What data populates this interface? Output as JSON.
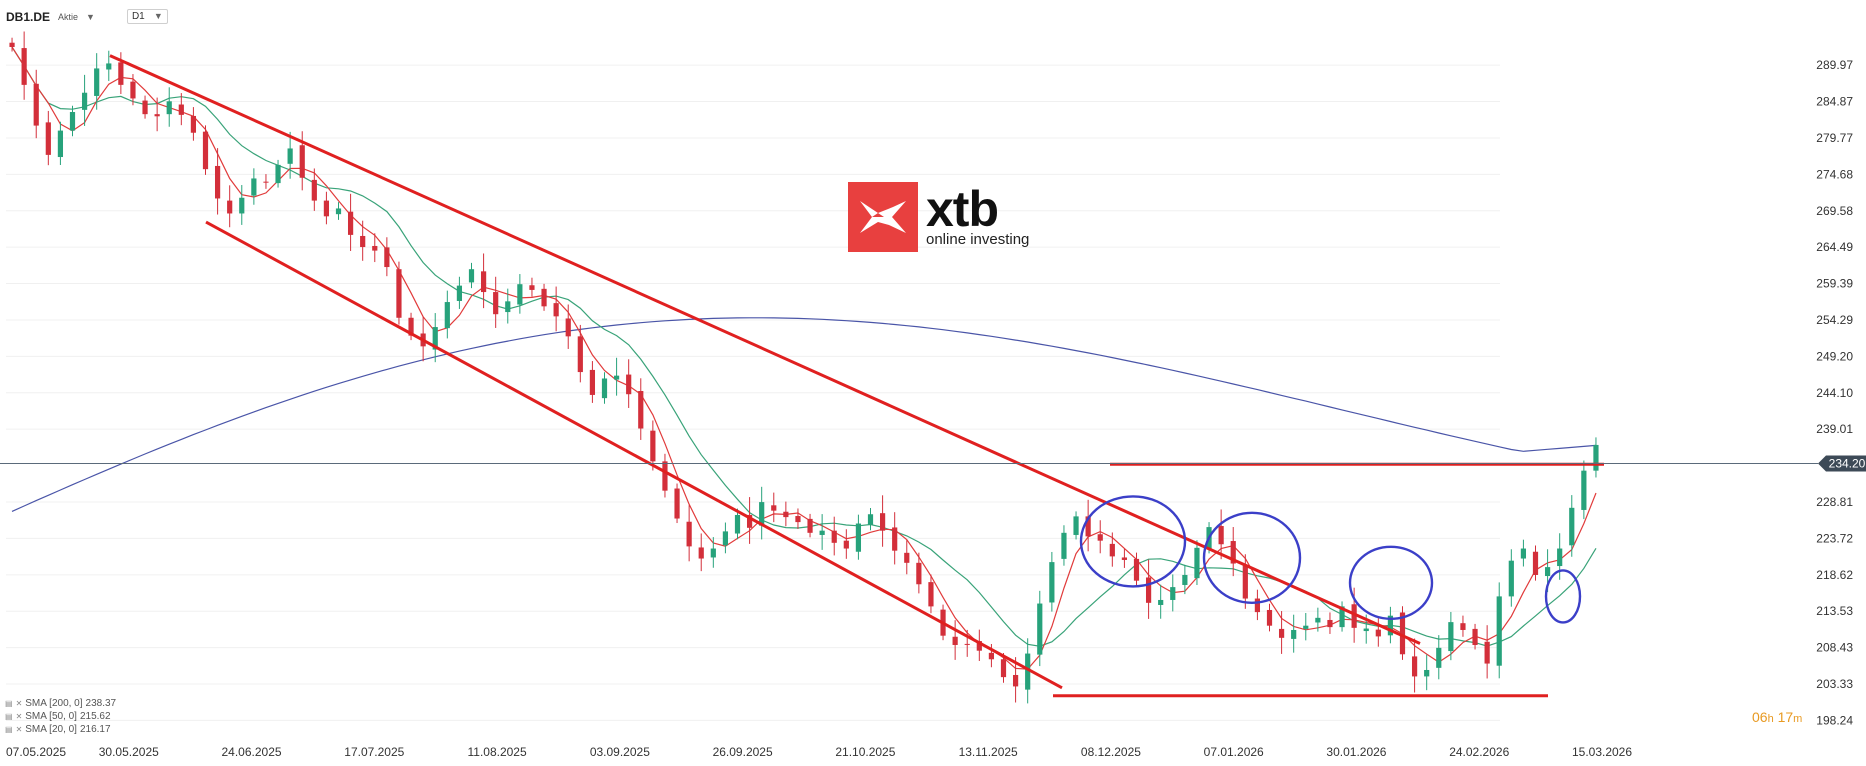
{
  "instrument": {
    "symbol": "DB1.DE",
    "type": "Aktie",
    "timeframe": "D1"
  },
  "logo": {
    "word": "xtb",
    "tagline": "online investing"
  },
  "timer": {
    "hours": "06",
    "h_unit": "h",
    "minutes": "17",
    "m_unit": "m"
  },
  "colors": {
    "bull": "#27a27b",
    "bear": "#d32f3a",
    "sma200": "#4a55a8",
    "sma50": "#39a379",
    "sma20": "#e13b3b",
    "annotation": "#e02020",
    "circle": "#3b3fc8"
  },
  "legend": [
    {
      "label": "SMA [200, 0]",
      "value": "238.37"
    },
    {
      "label": "SMA [50, 0]",
      "value": "215.62"
    },
    {
      "label": "SMA [20, 0]",
      "value": "216.17"
    }
  ],
  "chart_data": {
    "type": "candlestick",
    "ylim": [
      196.2,
      294.6
    ],
    "y_ticks": [
      "289.97",
      "284.87",
      "279.77",
      "274.68",
      "269.58",
      "264.49",
      "259.39",
      "254.29",
      "249.20",
      "244.10",
      "239.01",
      "228.81",
      "223.72",
      "218.62",
      "213.53",
      "208.43",
      "203.33",
      "198.24"
    ],
    "x_ticks": [
      "07.05.2025",
      "30.05.2025",
      "24.06.2025",
      "17.07.2025",
      "11.08.2025",
      "03.09.2025",
      "26.09.2025",
      "21.10.2025",
      "13.11.2025",
      "08.12.2025",
      "07.01.2026",
      "30.01.2026",
      "24.02.2026",
      "15.03.2026"
    ],
    "current_price": "234.20",
    "candle_closes": [
      292.5,
      287.2,
      281.5,
      277.4,
      280.8,
      283.4,
      286.1,
      289.5,
      290.2,
      287.2,
      285.3,
      283.1,
      282.8,
      284.9,
      283.0,
      280.5,
      275.4,
      271.3,
      269.2,
      271.4,
      274.1,
      273.6,
      276.0,
      278.3,
      274.2,
      271.0,
      268.8,
      269.9,
      266.2,
      264.5,
      264.0,
      261.7,
      254.6,
      252.1,
      250.6,
      253.3,
      256.8,
      259.1,
      261.4,
      258.2,
      255.1,
      256.9,
      259.3,
      258.5,
      256.2,
      254.8,
      252.0,
      247.0,
      243.8,
      246.1,
      246.5,
      243.9,
      239.1,
      234.5,
      230.4,
      226.5,
      222.6,
      220.9,
      222.3,
      224.7,
      227.0,
      225.2,
      228.8,
      227.6,
      226.7,
      226.0,
      224.5,
      224.8,
      223.1,
      222.3,
      225.8,
      227.1,
      224.8,
      222.0,
      220.3,
      217.3,
      214.2,
      210.1,
      208.8,
      208.9,
      208.0,
      206.8,
      204.3,
      203.0,
      207.6,
      214.6,
      220.4,
      224.5,
      226.8,
      224.0,
      223.4,
      221.2,
      220.7,
      217.8,
      214.7,
      215.1,
      216.9,
      218.6,
      222.4,
      225.3,
      222.9,
      220.2,
      215.3,
      213.4,
      211.5,
      209.8,
      210.9,
      211.5,
      212.6,
      211.3,
      214.2,
      211.2,
      211.1,
      210.0,
      212.9,
      207.5,
      204.4,
      205.3,
      208.4,
      212.0,
      210.9,
      208.8,
      206.2,
      215.6,
      220.6,
      222.3,
      218.6,
      219.7,
      222.3,
      228.0,
      233.2,
      236.8
    ],
    "sma200": {
      "name": "SMA [200, 0]",
      "last": 238.37
    },
    "sma50": {
      "name": "SMA [50, 0]",
      "last": 215.62
    },
    "sma20": {
      "name": "SMA [20, 0]",
      "last": 216.17
    }
  }
}
